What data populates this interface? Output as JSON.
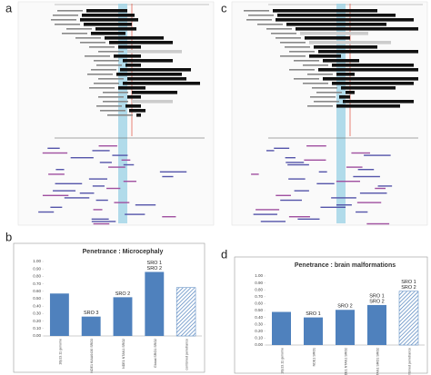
{
  "panel_labels": [
    "a",
    "b",
    "c",
    "d"
  ],
  "chart_data": [
    {
      "type": "bar",
      "title": "Penetrance : Microcephaly",
      "categories": [
        "16p13.11 genome",
        "NDE1 KIAA0430 SRO3",
        "NDE1 NTAN1 SRO2",
        "Global SRO1 SRO2",
        "combined penetrance"
      ],
      "values": [
        0.57,
        0.26,
        0.52,
        0.86,
        0.65
      ],
      "annotations": [
        null,
        [
          "SRO 3"
        ],
        [
          "SRO 2"
        ],
        [
          "SRO 1",
          "SRO 2"
        ],
        null
      ],
      "color": "#4f81bd",
      "bar_styles": [
        "solid",
        "solid",
        "solid",
        "solid",
        "hatched"
      ],
      "ylim": [
        0,
        1
      ],
      "yticks": [
        {
          "value": 0,
          "label": "0.00"
        },
        {
          "value": 0.1,
          "label": "0.10"
        },
        {
          "value": 0.2,
          "label": "0.20"
        },
        {
          "value": 0.3,
          "label": "0.30"
        },
        {
          "value": 0.4,
          "label": "0.40"
        },
        {
          "value": 0.5,
          "label": "0.50"
        },
        {
          "value": 0.6,
          "label": "0.60"
        },
        {
          "value": 0.7,
          "label": "0.70"
        },
        {
          "value": 0.8,
          "label": "0.80"
        },
        {
          "value": 0.9,
          "label": "0.90"
        },
        {
          "value": 1,
          "label": "1.00"
        }
      ],
      "grid": false
    },
    {
      "type": "bar",
      "title": "Penetrance : brain malformations",
      "categories": [
        "16p13.11 genome",
        "NDE1 SRO1",
        "NDE1 NTAN1 SRO2",
        "NDE1 NTAN1 SRO1 SRO2",
        "Combined penetrance"
      ],
      "values": [
        0.48,
        0.4,
        0.51,
        0.58,
        0.78
      ],
      "annotations": [
        null,
        [
          "SRO 1"
        ],
        [
          "SRO 2"
        ],
        [
          "SRO 1",
          "SRO 2"
        ],
        [
          "SRO 1",
          "SRO 2"
        ]
      ],
      "color": "#4f81bd",
      "bar_styles": [
        "solid",
        "solid",
        "solid",
        "solid",
        "hatched"
      ],
      "ylim": [
        0,
        1
      ],
      "yticks": [
        {
          "value": 0,
          "label": "0.00"
        },
        {
          "value": 0.1,
          "label": "0.10"
        },
        {
          "value": 0.2,
          "label": "0.20"
        },
        {
          "value": 0.3,
          "label": "0.30"
        },
        {
          "value": 0.4,
          "label": "0.40"
        },
        {
          "value": 0.5,
          "label": "0.50"
        },
        {
          "value": 0.6,
          "label": "0.60"
        },
        {
          "value": 0.7,
          "label": "0.70"
        },
        {
          "value": 0.8,
          "label": "0.80"
        },
        {
          "value": 0.9,
          "label": "0.90"
        },
        {
          "value": 1,
          "label": "1.00"
        }
      ],
      "grid": false
    }
  ]
}
